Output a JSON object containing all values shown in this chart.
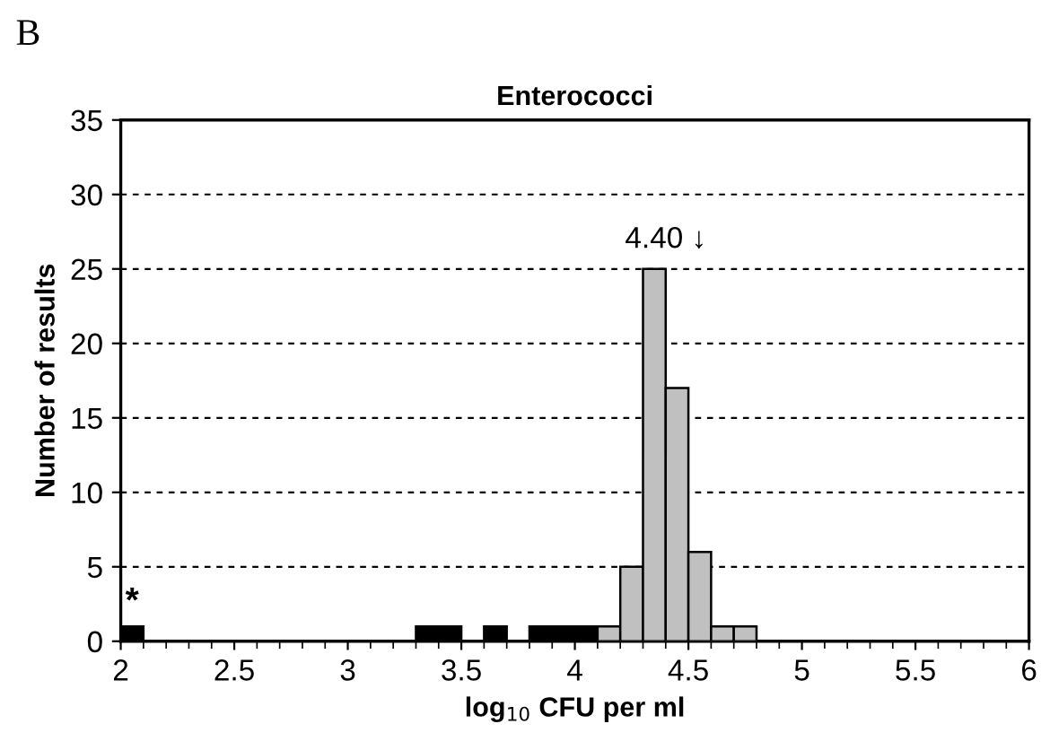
{
  "chart_data": {
    "type": "histogram",
    "title": "Enterococci",
    "xlabel": "log$_{10}$ CFU per ml",
    "ylabel": "Number of results",
    "bins": [
      2.0,
      2.1,
      2.2,
      2.3,
      2.4,
      2.5,
      2.6,
      2.7,
      2.8,
      2.9,
      3.0,
      3.1,
      3.2,
      3.3,
      3.4,
      3.5,
      3.6,
      3.7,
      3.8,
      3.9,
      4.0,
      4.1,
      4.2,
      4.3,
      4.4,
      4.5,
      4.6,
      4.7,
      4.8,
      4.9,
      5.0,
      5.1,
      5.2,
      5.3,
      5.4,
      5.5,
      5.6,
      5.7,
      5.8,
      5.9,
      6.0
    ],
    "series": [
      {
        "color": "#000000",
        "values": [
          1,
          0,
          0,
          0,
          0,
          0,
          0,
          0,
          0,
          0,
          0,
          0,
          0,
          1,
          1,
          0,
          1,
          0,
          1,
          1,
          1,
          0,
          0,
          0,
          0,
          0,
          0,
          0,
          0,
          0,
          0,
          0,
          0,
          0,
          0,
          0,
          0,
          0,
          0,
          0
        ]
      },
      {
        "color": "#c0c0c0",
        "values": [
          0,
          0,
          0,
          0,
          0,
          0,
          0,
          0,
          0,
          0,
          0,
          0,
          0,
          0,
          0,
          0,
          0,
          0,
          0,
          0,
          0,
          1,
          5,
          25,
          17,
          6,
          1,
          1,
          0,
          0,
          0,
          0,
          0,
          0,
          0,
          0,
          0,
          0,
          0,
          0
        ]
      }
    ],
    "xlim": [
      2,
      6
    ],
    "xticks": [
      2,
      2.5,
      3,
      3.5,
      4,
      4.5,
      5,
      5.5,
      6
    ],
    "ylim": [
      0,
      35
    ],
    "yticks": [
      0,
      5,
      10,
      15,
      20,
      25,
      30,
      35
    ],
    "grid": "y",
    "annotations": [
      {
        "text": "4.40 ↓",
        "x": 4.4,
        "y": 25
      },
      {
        "text": "*",
        "x": 2.05,
        "y": 1
      },
      "B"
    ]
  }
}
